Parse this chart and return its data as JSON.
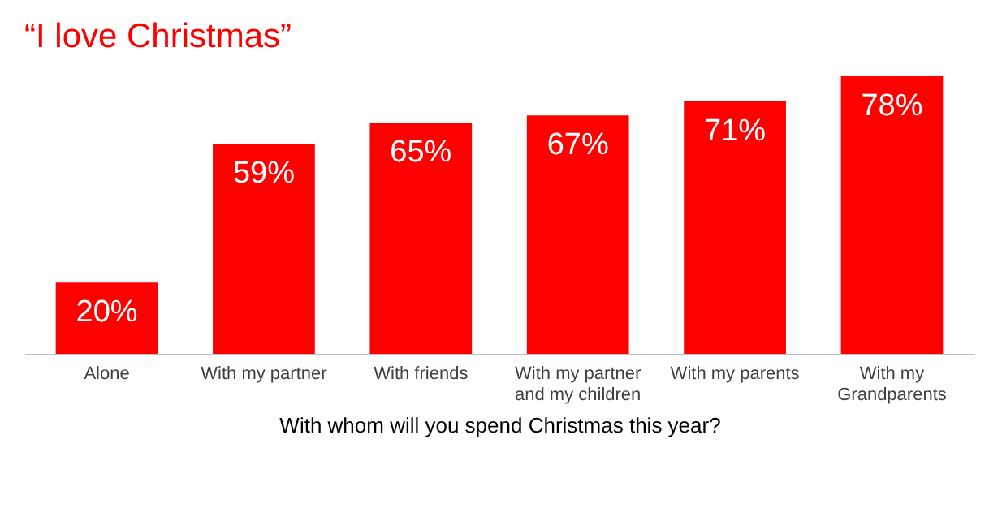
{
  "chart_data": {
    "type": "bar",
    "title": "“I love Christmas”",
    "xlabel": "With whom will you spend Christmas this year?",
    "categories": [
      "Alone",
      "With my partner",
      "With friends",
      "With my partner\nand my children",
      "With my parents",
      "With my\nGrandparents"
    ],
    "values": [
      20,
      59,
      65,
      67,
      71,
      78
    ],
    "value_labels": [
      "20%",
      "59%",
      "65%",
      "67%",
      "71%",
      "78%"
    ],
    "color": "#ff0000"
  }
}
